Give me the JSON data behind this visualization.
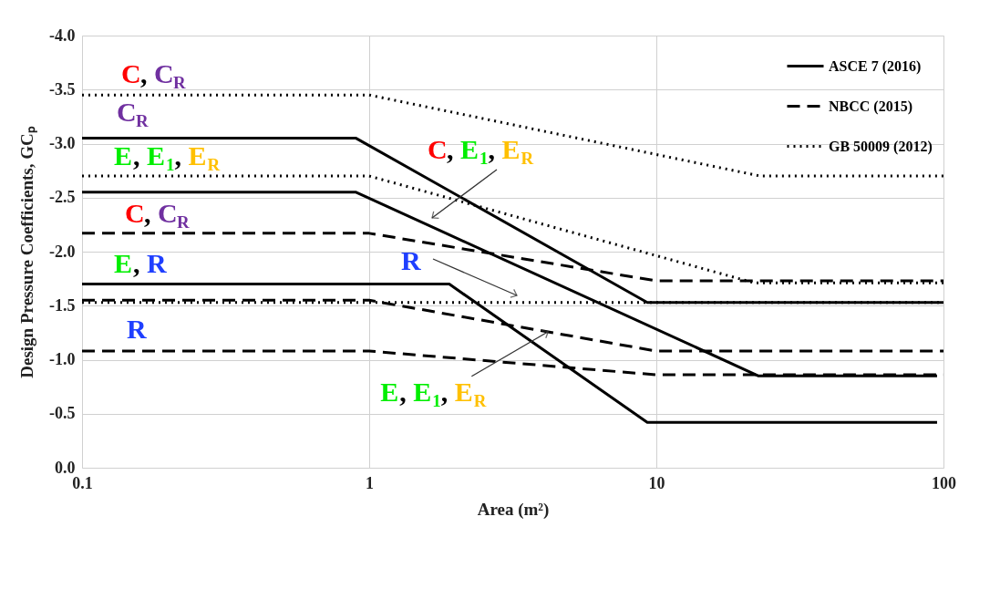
{
  "chart_data": {
    "type": "line",
    "xlabel": "Area (m²)",
    "ylabel": "Design Pressure Coefficients, GCₚ",
    "log": "x",
    "grid": true,
    "legend": "top right",
    "marker": "none",
    "xlim": [
      0.1,
      100
    ],
    "xticks": [
      0.1,
      1,
      10,
      100
    ],
    "ylim": [
      0,
      -4
    ],
    "yticks": [
      {
        "value": -4,
        "label": "-4.0"
      },
      {
        "value": -3.5,
        "label": "-3.5"
      },
      {
        "value": -3,
        "label": "-3.0"
      },
      {
        "value": -2.5,
        "label": "-2.5"
      },
      {
        "value": -2,
        "label": "-2.0"
      },
      {
        "value": -1.5,
        "label": "-1.5"
      },
      {
        "value": -1,
        "label": "-1.0"
      },
      {
        "value": -0.5,
        "label": "-0.5"
      },
      {
        "value": 0,
        "label": "0.0"
      }
    ],
    "series": [
      {
        "name": "ASCE 7 (2016)",
        "color": "#000000",
        "line_style": "solid",
        "x": [
          0.1,
          0.9,
          9.3,
          100
        ],
        "values": [
          -3.05,
          -3.05,
          -1.53,
          -1.53
        ]
      },
      {
        "color": "#000000",
        "line_style": "solid",
        "x": [
          0.1,
          0.9,
          22.7,
          95
        ],
        "values": [
          -2.55,
          -2.55,
          -0.85,
          -0.85
        ]
      },
      {
        "color": "#000000",
        "line_style": "solid",
        "x": [
          0.1,
          1.9,
          9.3,
          95
        ],
        "values": [
          -1.7,
          -1.7,
          -0.42,
          -0.42
        ]
      },
      {
        "name": "NBCC (2015)",
        "color": "#000000",
        "line_style": "dashed",
        "x": [
          0.1,
          1,
          10,
          100
        ],
        "values": [
          -2.17,
          -2.17,
          -1.73,
          -1.73
        ]
      },
      {
        "color": "#000000",
        "line_style": "dashed",
        "x": [
          0.1,
          1,
          10,
          100
        ],
        "values": [
          -1.55,
          -1.55,
          -1.08,
          -1.08
        ]
      },
      {
        "color": "#000000",
        "line_style": "dashed",
        "x": [
          0.1,
          1,
          10,
          100
        ],
        "values": [
          -1.08,
          -1.08,
          -0.86,
          -0.86
        ]
      },
      {
        "name": "GB 50009 (2012)",
        "color": "#000000",
        "line_style": "dotted",
        "x": [
          0.1,
          1,
          23,
          100
        ],
        "values": [
          -3.45,
          -3.45,
          -2.7,
          -2.7
        ]
      },
      {
        "color": "#000000",
        "line_style": "dotted",
        "x": [
          0.1,
          1,
          22,
          100
        ],
        "values": [
          -2.7,
          -2.7,
          -1.71,
          -1.71
        ]
      },
      {
        "color": "#000000",
        "line_style": "dotted",
        "x": [
          0.1,
          100
        ],
        "values": [
          -1.53,
          -1.53
        ]
      }
    ],
    "annotations": [
      "C, C$_{R}$",
      "C$_{R}$",
      "E, E$_{1}$, E$_{R}$",
      "C, C$_{R}$",
      "E, R",
      "R",
      "C, E$_{1}$, E$_{R}$",
      "R",
      {
        "text": "E, E$_{1}$, E$_{R}$",
        "x": 4.2,
        "y": -1.26
      }
    ]
  }
}
